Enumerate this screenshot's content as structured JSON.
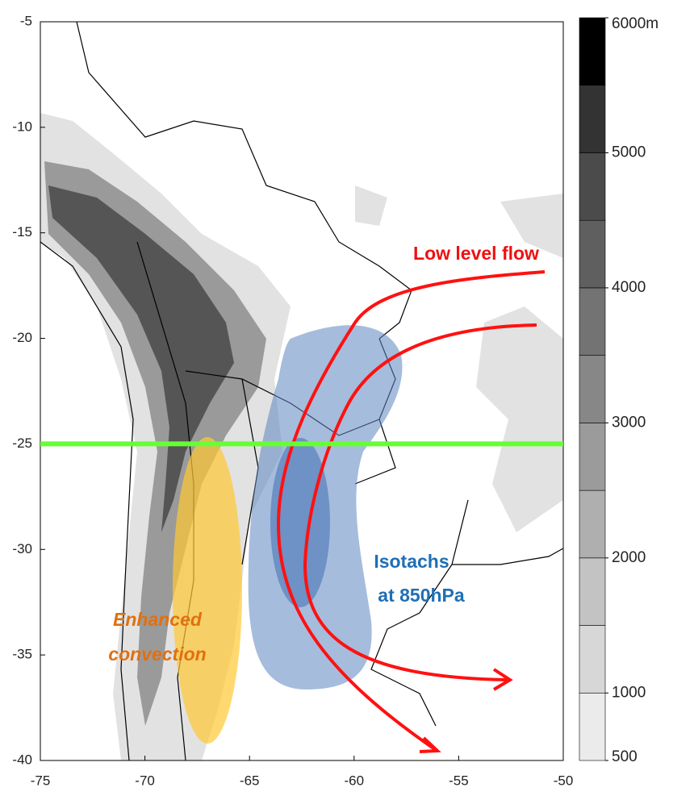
{
  "map": {
    "xlim": [
      -75,
      -50
    ],
    "xticks": [
      -75,
      -70,
      -65,
      -60,
      -55,
      -50
    ],
    "ylim": [
      -5,
      -40
    ],
    "yticks": [
      -5,
      -10,
      -15,
      -20,
      -25,
      -30,
      -35,
      -40
    ],
    "cross_section_lat": -25,
    "colorbar": {
      "levels": [
        500,
        1000,
        1500,
        2000,
        2500,
        3000,
        3500,
        4000,
        4500,
        5000,
        5500,
        6000
      ],
      "colors": [
        "#ebebeb",
        "#d7d7d7",
        "#c3c3c3",
        "#afafaf",
        "#9b9b9b",
        "#878787",
        "#737373",
        "#5f5f5f",
        "#4b4b4b",
        "#333333",
        "#000000"
      ],
      "ticks": [
        500,
        1000,
        2000,
        3000,
        4000,
        5000,
        {
          "value": 6000,
          "label": "6000m"
        }
      ]
    },
    "annotations": {
      "low_level_flow": "Low level flow",
      "isotachs": [
        "Isotachs",
        "at 850hPa"
      ],
      "convection": [
        "Enhanced",
        "convection"
      ]
    }
  }
}
